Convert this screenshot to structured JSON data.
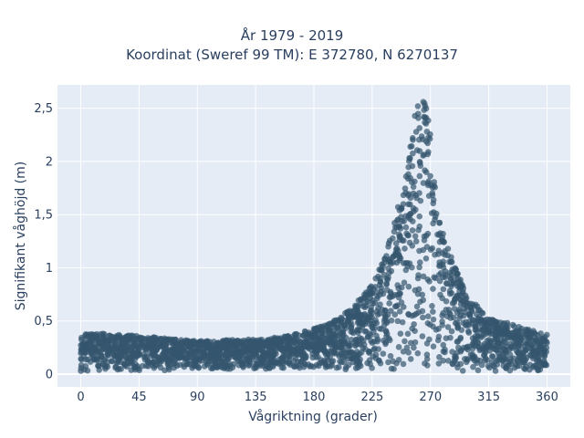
{
  "chart_data": {
    "type": "scatter",
    "title_lines": [
      "År 1979 - 2019",
      "Koordinat (Sweref 99 TM): E 372780, N 6270137"
    ],
    "xlabel": "Vågriktning (grader)",
    "ylabel": "Signifikant våghöjd (m)",
    "xlim": [
      -18,
      378
    ],
    "ylim": [
      -0.12,
      2.72
    ],
    "x_ticks": [
      0,
      45,
      90,
      135,
      180,
      225,
      270,
      315,
      360
    ],
    "x_tick_labels": [
      "0",
      "45",
      "90",
      "135",
      "180",
      "225",
      "270",
      "315",
      "360"
    ],
    "y_ticks": [
      0,
      0.5,
      1,
      1.5,
      2,
      2.5
    ],
    "y_tick_labels": [
      "0",
      "0,5",
      "1",
      "1,5",
      "2",
      "2,5"
    ],
    "grid": true,
    "marker_color": "#34566e",
    "background": "#e5ecf6",
    "series": [
      {
        "envelope": {
          "direction": [
            0,
            20,
            45,
            90,
            135,
            160,
            180,
            195,
            210,
            225,
            235,
            245,
            252,
            257,
            260,
            262,
            264,
            266,
            268,
            270,
            273,
            277,
            282,
            290,
            300,
            315,
            330,
            345,
            360
          ],
          "max_height": [
            0.38,
            0.38,
            0.36,
            0.31,
            0.33,
            0.36,
            0.43,
            0.5,
            0.63,
            0.85,
            1.12,
            1.58,
            1.92,
            2.38,
            2.56,
            2.62,
            2.62,
            2.58,
            2.48,
            2.25,
            1.85,
            1.48,
            1.25,
            0.98,
            0.72,
            0.52,
            0.48,
            0.42,
            0.38
          ],
          "min_height": [
            0.03,
            0.03,
            0.03,
            0.04,
            0.05,
            0.05,
            0.06,
            0.05,
            0.04,
            0.03,
            0.04,
            0.05,
            0.08,
            0.1,
            0.12,
            0.12,
            0.1,
            0.08,
            0.05,
            0.04,
            0.03,
            0.03,
            0.03,
            0.03,
            0.03,
            0.03,
            0.03,
            0.03,
            0.03
          ]
        }
      }
    ]
  }
}
